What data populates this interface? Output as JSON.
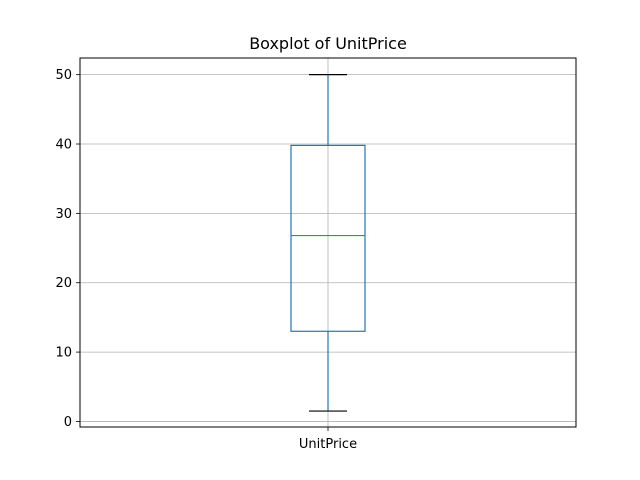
{
  "chart_data": {
    "type": "box",
    "title": "Boxplot of UnitPrice",
    "xlabel": "",
    "ylabel": "",
    "categories": [
      "UnitPrice"
    ],
    "boxes": [
      {
        "name": "UnitPrice",
        "whisker_low": 1.5,
        "q1": 13,
        "median": 26.8,
        "q3": 39.8,
        "whisker_high": 50
      }
    ],
    "ylim": [
      -0.8,
      52.4
    ],
    "yticks": [
      0,
      10,
      20,
      30,
      40,
      50
    ],
    "grid": true,
    "colors": {
      "box": "#1f77b4",
      "median": "#2ca02c",
      "cap": "#000000",
      "grid": "#b0b0b0",
      "axes": "#000000"
    }
  }
}
